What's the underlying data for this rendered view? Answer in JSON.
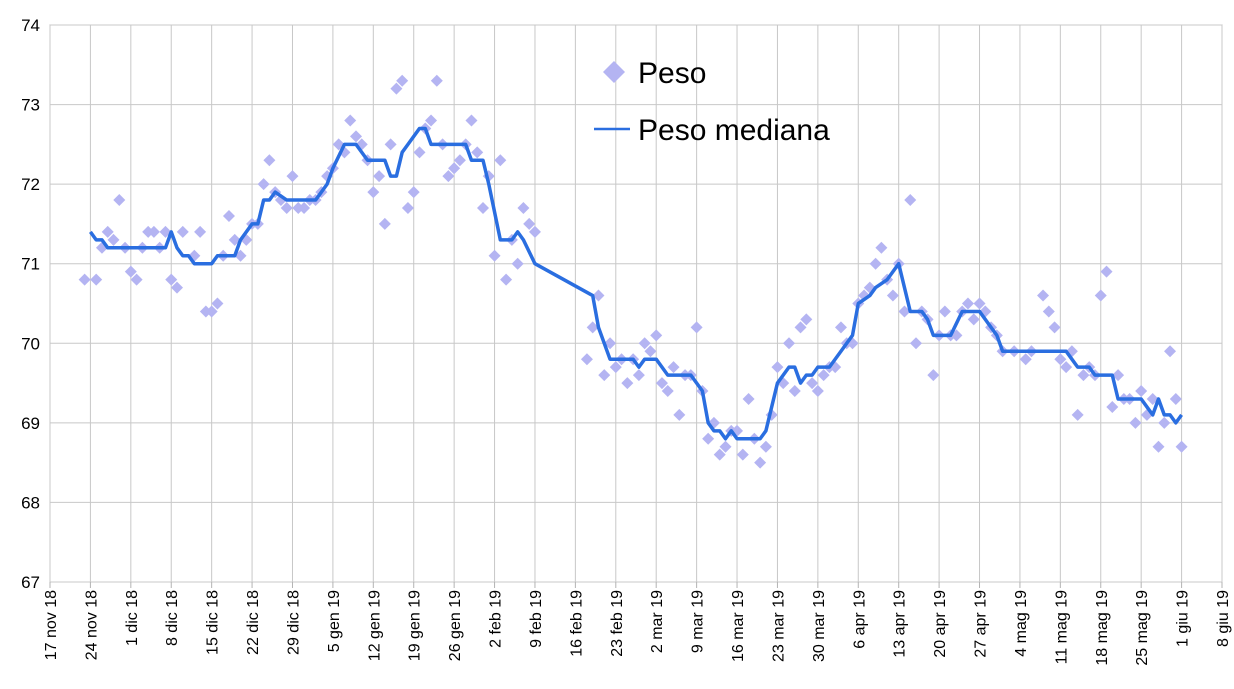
{
  "chart_data": {
    "type": "scatter",
    "xlim": [
      "2018-11-17",
      "2019-06-08"
    ],
    "xticks": [
      {
        "value": "2018-11-17",
        "label": "17 nov 18"
      },
      {
        "value": "2018-11-24",
        "label": "24 nov 18"
      },
      {
        "value": "2018-12-01",
        "label": "1 dic 18"
      },
      {
        "value": "2018-12-08",
        "label": "8 dic 18"
      },
      {
        "value": "2018-12-15",
        "label": "15 dic 18"
      },
      {
        "value": "2018-12-22",
        "label": "22 dic 18"
      },
      {
        "value": "2018-12-29",
        "label": "29 dic 18"
      },
      {
        "value": "2019-01-05",
        "label": "5 gen 19"
      },
      {
        "value": "2019-01-12",
        "label": "12 gen 19"
      },
      {
        "value": "2019-01-19",
        "label": "19 gen 19"
      },
      {
        "value": "2019-01-26",
        "label": "26 gen 19"
      },
      {
        "value": "2019-02-02",
        "label": "2 feb 19"
      },
      {
        "value": "2019-02-09",
        "label": "9 feb 19"
      },
      {
        "value": "2019-02-16",
        "label": "16 feb 19"
      },
      {
        "value": "2019-02-23",
        "label": "23 feb 19"
      },
      {
        "value": "2019-03-02",
        "label": "2 mar 19"
      },
      {
        "value": "2019-03-09",
        "label": "9 mar 19"
      },
      {
        "value": "2019-03-16",
        "label": "16 mar 19"
      },
      {
        "value": "2019-03-23",
        "label": "23 mar 19"
      },
      {
        "value": "2019-03-30",
        "label": "30 mar 19"
      },
      {
        "value": "2019-04-06",
        "label": "6 apr 19"
      },
      {
        "value": "2019-04-13",
        "label": "13 apr 19"
      },
      {
        "value": "2019-04-20",
        "label": "20 apr 19"
      },
      {
        "value": "2019-04-27",
        "label": "27 apr 19"
      },
      {
        "value": "2019-05-04",
        "label": "4 mag 19"
      },
      {
        "value": "2019-05-11",
        "label": "11 mag 19"
      },
      {
        "value": "2019-05-18",
        "label": "18 mag 19"
      },
      {
        "value": "2019-05-25",
        "label": "25 mag 19"
      },
      {
        "value": "2019-06-01",
        "label": "1 giu 19"
      },
      {
        "value": "2019-06-08",
        "label": "8 giu 19"
      }
    ],
    "ylim": [
      67,
      74
    ],
    "yticks": [
      67,
      68,
      69,
      70,
      71,
      72,
      73,
      74
    ],
    "grid": true,
    "legend": "top",
    "series": [
      {
        "name": "Peso",
        "type": "scatter",
        "color": "#b4b4f2",
        "x": [
          "2018-11-23",
          "2018-11-25",
          "2018-11-26",
          "2018-11-27",
          "2018-11-28",
          "2018-11-29",
          "2018-11-30",
          "2018-12-01",
          "2018-12-02",
          "2018-12-03",
          "2018-12-04",
          "2018-12-05",
          "2018-12-06",
          "2018-12-07",
          "2018-12-08",
          "2018-12-09",
          "2018-12-10",
          "2018-12-12",
          "2018-12-13",
          "2018-12-14",
          "2018-12-15",
          "2018-12-16",
          "2018-12-17",
          "2018-12-18",
          "2018-12-19",
          "2018-12-20",
          "2018-12-21",
          "2018-12-22",
          "2018-12-23",
          "2018-12-24",
          "2018-12-25",
          "2018-12-26",
          "2018-12-27",
          "2018-12-28",
          "2018-12-29",
          "2018-12-30",
          "2018-12-31",
          "2019-01-01",
          "2019-01-02",
          "2019-01-03",
          "2019-01-04",
          "2019-01-05",
          "2019-01-06",
          "2019-01-07",
          "2019-01-08",
          "2019-01-09",
          "2019-01-10",
          "2019-01-11",
          "2019-01-12",
          "2019-01-13",
          "2019-01-14",
          "2019-01-15",
          "2019-01-16",
          "2019-01-17",
          "2019-01-18",
          "2019-01-19",
          "2019-01-20",
          "2019-01-21",
          "2019-01-22",
          "2019-01-23",
          "2019-01-24",
          "2019-01-25",
          "2019-01-26",
          "2019-01-27",
          "2019-01-28",
          "2019-01-29",
          "2019-01-30",
          "2019-01-31",
          "2019-02-01",
          "2019-02-02",
          "2019-02-03",
          "2019-02-04",
          "2019-02-05",
          "2019-02-06",
          "2019-02-07",
          "2019-02-08",
          "2019-02-09",
          "2019-02-18",
          "2019-02-19",
          "2019-02-20",
          "2019-02-21",
          "2019-02-22",
          "2019-02-23",
          "2019-02-24",
          "2019-02-25",
          "2019-02-26",
          "2019-02-27",
          "2019-02-28",
          "2019-03-01",
          "2019-03-02",
          "2019-03-03",
          "2019-03-04",
          "2019-03-05",
          "2019-03-06",
          "2019-03-07",
          "2019-03-08",
          "2019-03-09",
          "2019-03-10",
          "2019-03-11",
          "2019-03-12",
          "2019-03-13",
          "2019-03-14",
          "2019-03-15",
          "2019-03-16",
          "2019-03-17",
          "2019-03-18",
          "2019-03-19",
          "2019-03-20",
          "2019-03-21",
          "2019-03-22",
          "2019-03-23",
          "2019-03-24",
          "2019-03-25",
          "2019-03-26",
          "2019-03-27",
          "2019-03-28",
          "2019-03-29",
          "2019-03-30",
          "2019-03-31",
          "2019-04-01",
          "2019-04-02",
          "2019-04-03",
          "2019-04-04",
          "2019-04-05",
          "2019-04-06",
          "2019-04-07",
          "2019-04-08",
          "2019-04-09",
          "2019-04-10",
          "2019-04-11",
          "2019-04-12",
          "2019-04-13",
          "2019-04-14",
          "2019-04-15",
          "2019-04-16",
          "2019-04-17",
          "2019-04-18",
          "2019-04-19",
          "2019-04-20",
          "2019-04-21",
          "2019-04-22",
          "2019-04-23",
          "2019-04-24",
          "2019-04-25",
          "2019-04-26",
          "2019-04-27",
          "2019-04-28",
          "2019-04-29",
          "2019-04-30",
          "2019-05-01",
          "2019-05-03",
          "2019-05-05",
          "2019-05-06",
          "2019-05-08",
          "2019-05-09",
          "2019-05-10",
          "2019-05-11",
          "2019-05-12",
          "2019-05-13",
          "2019-05-14",
          "2019-05-15",
          "2019-05-16",
          "2019-05-17",
          "2019-05-18",
          "2019-05-19",
          "2019-05-20",
          "2019-05-21",
          "2019-05-22",
          "2019-05-23",
          "2019-05-24",
          "2019-05-25",
          "2019-05-26",
          "2019-05-27",
          "2019-05-28",
          "2019-05-29",
          "2019-05-30",
          "2019-05-31",
          "2019-06-01"
        ],
        "values": [
          70.8,
          70.8,
          71.2,
          71.4,
          71.3,
          71.8,
          71.2,
          70.9,
          70.8,
          71.2,
          71.4,
          71.4,
          71.2,
          71.4,
          70.8,
          70.7,
          71.4,
          71.1,
          71.4,
          70.4,
          70.4,
          70.5,
          71.1,
          71.6,
          71.3,
          71.1,
          71.3,
          71.5,
          71.5,
          72.0,
          72.3,
          71.9,
          71.8,
          71.7,
          72.1,
          71.7,
          71.7,
          71.8,
          71.8,
          71.9,
          72.1,
          72.2,
          72.5,
          72.4,
          72.8,
          72.6,
          72.5,
          72.3,
          71.9,
          72.1,
          71.5,
          72.5,
          73.2,
          73.3,
          71.7,
          71.9,
          72.4,
          72.7,
          72.8,
          73.3,
          72.5,
          72.1,
          72.2,
          72.3,
          72.5,
          72.8,
          72.4,
          71.7,
          72.1,
          71.1,
          72.3,
          70.8,
          71.3,
          71.0,
          71.7,
          71.5,
          71.4,
          69.8,
          70.2,
          70.6,
          69.6,
          70.0,
          69.7,
          69.8,
          69.5,
          69.8,
          69.6,
          70.0,
          69.9,
          70.1,
          69.5,
          69.4,
          69.7,
          69.1,
          69.6,
          69.6,
          70.2,
          69.4,
          68.8,
          69.0,
          68.6,
          68.7,
          68.9,
          68.9,
          68.6,
          69.3,
          68.8,
          68.5,
          68.7,
          69.1,
          69.7,
          69.5,
          70.0,
          69.4,
          70.2,
          70.3,
          69.5,
          69.4,
          69.6,
          69.7,
          69.7,
          70.2,
          70.0,
          70.0,
          70.5,
          70.6,
          70.7,
          71.0,
          71.2,
          70.8,
          70.6,
          71.0,
          70.4,
          71.8,
          70.0,
          70.4,
          70.3,
          69.6,
          70.1,
          70.4,
          70.1,
          70.1,
          70.4,
          70.5,
          70.3,
          70.5,
          70.4,
          70.2,
          70.1,
          69.9,
          69.9,
          69.8,
          69.9,
          70.6,
          70.4,
          70.2,
          69.8,
          69.7,
          69.9,
          69.1,
          69.6,
          69.7,
          69.6,
          70.6,
          70.9,
          69.2,
          69.6,
          69.3,
          69.3,
          69.0,
          69.4,
          69.1,
          69.3,
          68.7,
          69.0,
          69.9,
          69.3,
          68.7
        ]
      },
      {
        "name": "Peso mediana",
        "type": "line",
        "color": "#2a6ee0",
        "x": [
          "2018-11-24",
          "2018-11-25",
          "2018-11-26",
          "2018-11-27",
          "2018-12-07",
          "2018-12-08",
          "2018-12-09",
          "2018-12-10",
          "2018-12-11",
          "2018-12-12",
          "2018-12-15",
          "2018-12-16",
          "2018-12-19",
          "2018-12-20",
          "2018-12-22",
          "2018-12-23",
          "2018-12-24",
          "2018-12-25",
          "2018-12-26",
          "2018-12-28",
          "2018-12-29",
          "2019-01-02",
          "2019-01-04",
          "2019-01-05",
          "2019-01-07",
          "2019-01-09",
          "2019-01-11",
          "2019-01-14",
          "2019-01-15",
          "2019-01-16",
          "2019-01-17",
          "2019-01-18",
          "2019-01-20",
          "2019-01-21",
          "2019-01-22",
          "2019-01-28",
          "2019-01-29",
          "2019-01-31",
          "2019-02-01",
          "2019-02-03",
          "2019-02-05",
          "2019-02-06",
          "2019-02-07",
          "2019-02-09",
          "2019-02-19",
          "2019-02-20",
          "2019-02-22",
          "2019-02-26",
          "2019-02-27",
          "2019-02-28",
          "2019-03-02",
          "2019-03-03",
          "2019-03-04",
          "2019-03-07",
          "2019-03-08",
          "2019-03-10",
          "2019-03-11",
          "2019-03-12",
          "2019-03-13",
          "2019-03-14",
          "2019-03-15",
          "2019-03-16",
          "2019-03-20",
          "2019-03-21",
          "2019-03-23",
          "2019-03-25",
          "2019-03-26",
          "2019-03-27",
          "2019-03-28",
          "2019-03-29",
          "2019-03-30",
          "2019-04-01",
          "2019-04-03",
          "2019-04-05",
          "2019-04-06",
          "2019-04-08",
          "2019-04-09",
          "2019-04-11",
          "2019-04-13",
          "2019-04-15",
          "2019-04-17",
          "2019-04-18",
          "2019-04-19",
          "2019-04-22",
          "2019-04-24",
          "2019-04-27",
          "2019-04-29",
          "2019-04-30",
          "2019-05-01",
          "2019-05-12",
          "2019-05-13",
          "2019-05-14",
          "2019-05-16",
          "2019-05-17",
          "2019-05-20",
          "2019-05-21",
          "2019-05-25",
          "2019-05-26",
          "2019-05-27",
          "2019-05-28",
          "2019-05-29",
          "2019-05-30",
          "2019-05-31",
          "2019-06-01"
        ],
        "values": [
          71.4,
          71.3,
          71.3,
          71.2,
          71.2,
          71.4,
          71.2,
          71.1,
          71.1,
          71.0,
          71.0,
          71.1,
          71.1,
          71.3,
          71.5,
          71.5,
          71.8,
          71.8,
          71.9,
          71.8,
          71.8,
          71.8,
          72.0,
          72.2,
          72.5,
          72.5,
          72.3,
          72.3,
          72.1,
          72.1,
          72.4,
          72.5,
          72.7,
          72.7,
          72.5,
          72.5,
          72.3,
          72.3,
          72.0,
          71.3,
          71.3,
          71.4,
          71.3,
          71.0,
          70.6,
          70.2,
          69.8,
          69.8,
          69.7,
          69.8,
          69.8,
          69.7,
          69.6,
          69.6,
          69.6,
          69.4,
          69.0,
          68.9,
          68.9,
          68.8,
          68.9,
          68.8,
          68.8,
          68.9,
          69.5,
          69.7,
          69.7,
          69.5,
          69.6,
          69.6,
          69.7,
          69.7,
          69.9,
          70.1,
          70.5,
          70.6,
          70.7,
          70.8,
          71.0,
          70.4,
          70.4,
          70.3,
          70.1,
          70.1,
          70.4,
          70.4,
          70.2,
          70.1,
          69.9,
          69.9,
          69.8,
          69.7,
          69.7,
          69.6,
          69.6,
          69.3,
          69.3,
          69.2,
          69.1,
          69.3,
          69.1,
          69.1,
          69.0,
          69.1
        ]
      }
    ]
  }
}
